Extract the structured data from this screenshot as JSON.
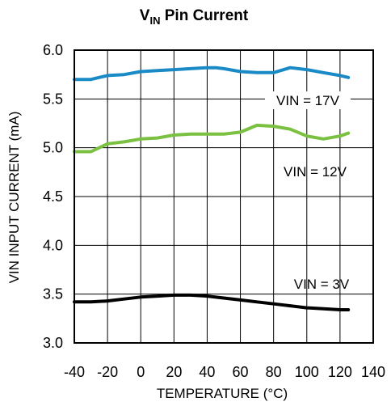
{
  "chart_data": {
    "type": "line",
    "title_main": "V",
    "title_sub": "IN",
    "title_rest": " Pin Current",
    "xlabel": "TEMPERATURE (°C)",
    "ylabel": "VIN INPUT CURRENT (mA)",
    "xlim": [
      -40,
      140
    ],
    "ylim": [
      3.0,
      6.0
    ],
    "xticks": [
      -40,
      -20,
      0,
      20,
      40,
      60,
      80,
      100,
      120,
      140
    ],
    "xtick_labels": [
      "-40",
      "-20",
      "0",
      "20",
      "40",
      "60",
      "80",
      "100",
      "120",
      "140"
    ],
    "yticks": [
      3.0,
      3.5,
      4.0,
      4.5,
      5.0,
      5.5,
      6.0
    ],
    "ytick_labels": [
      "3.0",
      "3.5",
      "4.0",
      "4.5",
      "5.0",
      "5.5",
      "6.0"
    ],
    "grid": true,
    "series": [
      {
        "name": "VIN = 17V",
        "color": "#1a8ac6",
        "x": [
          -40,
          -30,
          -20,
          -10,
          0,
          10,
          20,
          30,
          40,
          45,
          50,
          60,
          70,
          80,
          90,
          100,
          110,
          120,
          125
        ],
        "y": [
          5.7,
          5.7,
          5.74,
          5.75,
          5.78,
          5.79,
          5.8,
          5.81,
          5.82,
          5.82,
          5.81,
          5.78,
          5.77,
          5.77,
          5.82,
          5.8,
          5.77,
          5.74,
          5.72
        ]
      },
      {
        "name": "VIN = 12V",
        "color": "#7ac142",
        "x": [
          -40,
          -30,
          -20,
          -10,
          0,
          10,
          20,
          30,
          40,
          50,
          60,
          70,
          80,
          90,
          100,
          110,
          120,
          125
        ],
        "y": [
          4.96,
          4.96,
          5.04,
          5.06,
          5.09,
          5.1,
          5.13,
          5.14,
          5.14,
          5.14,
          5.16,
          5.23,
          5.22,
          5.19,
          5.12,
          5.09,
          5.12,
          5.15
        ]
      },
      {
        "name": "VIN = 3V",
        "color": "#000000",
        "x": [
          -40,
          -30,
          -20,
          -10,
          0,
          10,
          20,
          30,
          40,
          50,
          60,
          70,
          80,
          90,
          100,
          110,
          120,
          125
        ],
        "y": [
          3.42,
          3.42,
          3.43,
          3.45,
          3.47,
          3.48,
          3.49,
          3.49,
          3.48,
          3.46,
          3.44,
          3.42,
          3.4,
          3.38,
          3.36,
          3.35,
          3.34,
          3.34
        ]
      }
    ],
    "annotations": [
      {
        "text": "VIN = 17V",
        "series": 0
      },
      {
        "text": "VIN = 12V",
        "series": 1
      },
      {
        "text": "VIN = 3V",
        "series": 2
      }
    ]
  }
}
